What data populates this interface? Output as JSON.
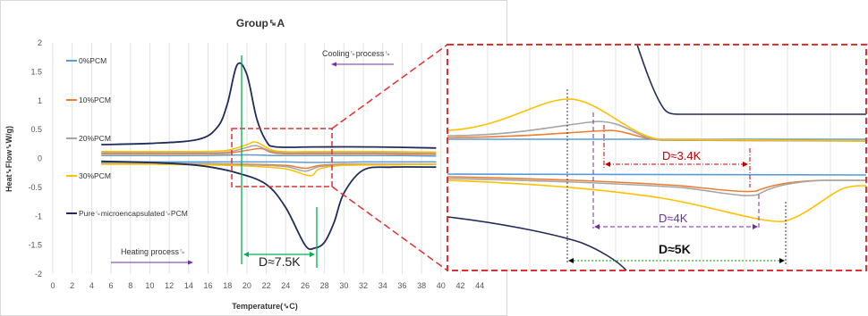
{
  "chart_data": {
    "type": "line",
    "title": "Group␙A",
    "xlabel": "Temperature(␙C)",
    "ylabel": "Heat␙Flow␙W/g)",
    "xlim": [
      0,
      45
    ],
    "ylim": [
      -2,
      2
    ],
    "x_ticks": [
      "0",
      "2",
      "4",
      "6",
      "8",
      "10",
      "12",
      "14",
      "16",
      "18",
      "20",
      "22",
      "24",
      "26",
      "28",
      "30",
      "32",
      "34",
      "36",
      "38",
      "40",
      "42",
      "44"
    ],
    "y_ticks": [
      "2",
      "1.5",
      "1",
      "0.5",
      "0",
      "-0.5",
      "-1",
      "-1.5",
      "-2"
    ],
    "grid": "vertical",
    "legend_position": "left",
    "series": [
      {
        "name": "0%PCM",
        "color": "#5b9bd5",
        "cooling": {
          "x": [
            5,
            10,
            15,
            19,
            21,
            23,
            27,
            32,
            36,
            39.5
          ],
          "y": [
            0.05,
            0.05,
            0.05,
            0.06,
            0.06,
            0.05,
            0.05,
            0.05,
            0.05,
            0.04
          ]
        },
        "heating": {
          "x": [
            5,
            10,
            15,
            20,
            24,
            27,
            32,
            36,
            39.5
          ],
          "y": [
            -0.06,
            -0.06,
            -0.06,
            -0.06,
            -0.06,
            -0.07,
            -0.06,
            -0.06,
            -0.06
          ]
        }
      },
      {
        "name": "10%PCM",
        "color": "#ed7d31",
        "cooling": {
          "x": [
            5,
            10,
            15,
            18,
            20,
            21.5,
            23,
            27,
            33,
            39.5
          ],
          "y": [
            0.08,
            0.08,
            0.08,
            0.09,
            0.14,
            0.17,
            0.09,
            0.08,
            0.08,
            0.07
          ]
        },
        "heating": {
          "x": [
            5,
            10,
            15,
            20,
            24,
            26,
            27.5,
            30,
            35,
            39.5
          ],
          "y": [
            -0.08,
            -0.08,
            -0.09,
            -0.1,
            -0.12,
            -0.17,
            -0.12,
            -0.1,
            -0.1,
            -0.1
          ]
        }
      },
      {
        "name": "20%PCM",
        "color": "#a5a5a5",
        "cooling": {
          "x": [
            5,
            10,
            15,
            18,
            20,
            21,
            23,
            27,
            33,
            39.5
          ],
          "y": [
            0.1,
            0.1,
            0.1,
            0.11,
            0.19,
            0.22,
            0.11,
            0.1,
            0.1,
            0.09
          ]
        },
        "heating": {
          "x": [
            5,
            10,
            15,
            20,
            24,
            26,
            27.5,
            30,
            35,
            39.5
          ],
          "y": [
            -0.08,
            -0.08,
            -0.09,
            -0.11,
            -0.14,
            -0.22,
            -0.14,
            -0.11,
            -0.1,
            -0.1
          ]
        }
      },
      {
        "name": "30%PCM",
        "color": "#ffc000",
        "cooling": {
          "x": [
            5,
            10,
            15,
            18,
            20,
            21,
            23,
            27,
            33,
            39.5
          ],
          "y": [
            0.12,
            0.12,
            0.12,
            0.14,
            0.24,
            0.28,
            0.13,
            0.12,
            0.12,
            0.11
          ]
        },
        "heating": {
          "x": [
            5,
            10,
            15,
            20,
            24,
            26.5,
            27.5,
            30,
            35,
            39.5
          ],
          "y": [
            -0.1,
            -0.1,
            -0.11,
            -0.13,
            -0.18,
            -0.3,
            -0.18,
            -0.12,
            -0.11,
            -0.1
          ]
        }
      },
      {
        "name": "Pure␙microencapsulated␙PCM",
        "color": "#1f2d5a",
        "cooling": {
          "x": [
            5,
            10,
            15,
            17,
            18,
            19,
            20,
            21,
            22,
            23,
            27,
            33,
            39.5
          ],
          "y": [
            0.24,
            0.26,
            0.33,
            0.55,
            0.95,
            1.62,
            1.45,
            0.7,
            0.3,
            0.2,
            0.2,
            0.2,
            0.18
          ]
        },
        "heating": {
          "x": [
            5,
            10,
            15,
            19,
            22,
            24,
            26,
            27,
            28,
            29,
            30,
            32,
            35,
            39.5
          ],
          "y": [
            -0.05,
            -0.07,
            -0.12,
            -0.25,
            -0.45,
            -0.85,
            -1.5,
            -1.55,
            -1.45,
            -1.1,
            -0.6,
            -0.2,
            -0.15,
            -0.15
          ]
        }
      }
    ],
    "annotations": [
      {
        "text": "Cooling␙process␙",
        "direction": "left"
      },
      {
        "text": "Heating process␙",
        "direction": "right"
      },
      {
        "text": "D≈7.5K",
        "from": 19,
        "to": 26.5,
        "color": "#00b050"
      }
    ]
  },
  "inset": {
    "d_labels": [
      {
        "text": "D≈3.4K",
        "color": "#c00000"
      },
      {
        "text": "D≈4K",
        "color": "#7030a0"
      },
      {
        "text": "D≈5K",
        "color": "#000000"
      }
    ]
  }
}
